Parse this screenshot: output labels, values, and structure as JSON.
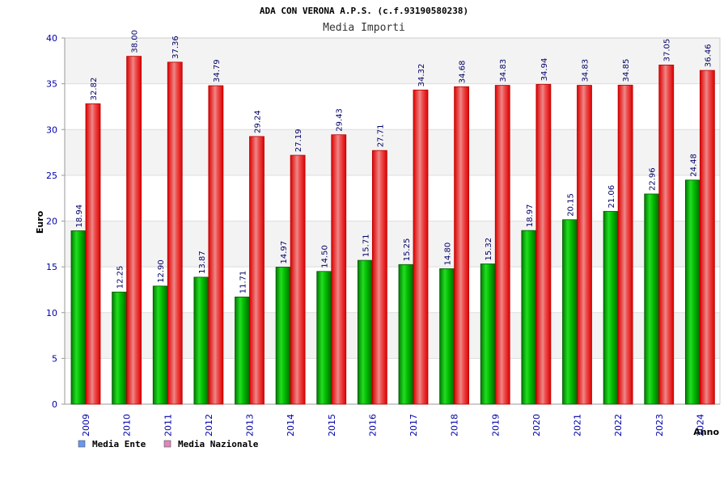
{
  "chart_data": {
    "type": "bar",
    "title": "ADA CON VERONA A.P.S. (c.f.93190580238)",
    "subtitle": "Media Importi",
    "xlabel": "Anno",
    "ylabel": "Euro",
    "ylim": [
      0,
      40
    ],
    "yticks": [
      "0",
      "5",
      "10",
      "15",
      "20",
      "25",
      "30",
      "35",
      "40"
    ],
    "grid": true,
    "legend_position": "bottom-left",
    "categories": [
      "2009",
      "2010",
      "2011",
      "2012",
      "2013",
      "2014",
      "2015",
      "2016",
      "2017",
      "2018",
      "2019",
      "2020",
      "2021",
      "2022",
      "2023",
      "2024"
    ],
    "series": [
      {
        "name": "Media Ente",
        "color": "#00aa00",
        "legend_color": "#6699ee",
        "values": [
          18.94,
          12.25,
          12.9,
          13.87,
          11.71,
          14.97,
          14.5,
          15.71,
          15.25,
          14.8,
          15.32,
          18.97,
          20.15,
          21.06,
          22.96,
          24.48
        ],
        "labels": [
          "18.94",
          "12.25",
          "12.90",
          "13.87",
          "11.71",
          "14.97",
          "14.50",
          "15.71",
          "15.25",
          "14.80",
          "15.32",
          "18.97",
          "20.15",
          "21.06",
          "22.96",
          "24.48"
        ]
      },
      {
        "name": "Media Nazionale",
        "color": "#ee0000",
        "legend_color": "#dd88bb",
        "values": [
          32.82,
          38.0,
          37.36,
          34.79,
          29.24,
          27.19,
          29.43,
          27.71,
          34.32,
          34.68,
          34.83,
          34.94,
          34.83,
          34.85,
          37.05,
          36.46
        ],
        "labels": [
          "32.82",
          "38.00",
          "37.36",
          "34.79",
          "29.24",
          "27.19",
          "29.43",
          "27.71",
          "34.32",
          "34.68",
          "34.83",
          "34.94",
          "34.83",
          "34.85",
          "37.05",
          "36.46"
        ]
      }
    ]
  }
}
